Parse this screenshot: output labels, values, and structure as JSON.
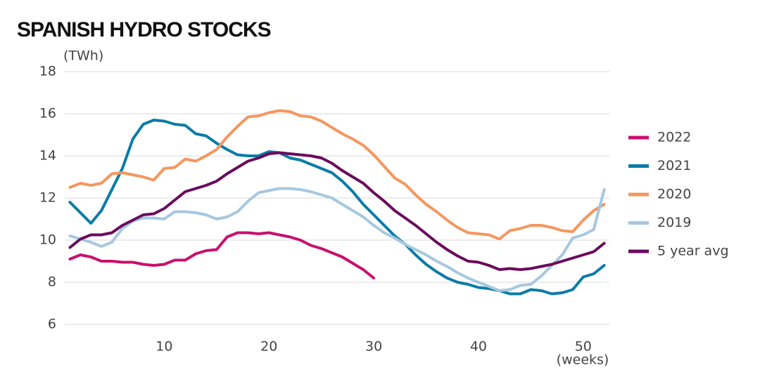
{
  "chart_data": {
    "type": "line",
    "title": "SPANISH HYDRO STOCKS",
    "y_label": "(TWh)",
    "x_label": "(weeks)",
    "x": [
      1,
      2,
      3,
      4,
      5,
      6,
      7,
      8,
      9,
      10,
      11,
      12,
      13,
      14,
      15,
      16,
      17,
      18,
      19,
      20,
      21,
      22,
      23,
      24,
      25,
      26,
      27,
      28,
      29,
      30,
      31,
      32,
      33,
      34,
      35,
      36,
      37,
      38,
      39,
      40,
      41,
      42,
      43,
      44,
      45,
      46,
      47,
      48,
      49,
      50,
      51,
      52
    ],
    "xlim": [
      0.5,
      52.5
    ],
    "xticks": [
      10,
      20,
      30,
      40,
      50
    ],
    "ylim": [
      6,
      18
    ],
    "yticks": [
      6,
      8,
      10,
      12,
      14,
      16,
      18
    ],
    "grid": true,
    "legend": "right",
    "series": [
      {
        "name": "2022",
        "color": "#c8106e",
        "values": [
          9.1,
          9.3,
          9.2,
          9.0,
          9.0,
          8.95,
          8.95,
          8.85,
          8.8,
          8.85,
          9.05,
          9.05,
          9.35,
          9.5,
          9.55,
          10.15,
          10.35,
          10.35,
          10.3,
          10.35,
          10.25,
          10.15,
          10.0,
          9.75,
          9.6,
          9.4,
          9.2,
          8.9,
          8.6,
          8.2,
          null,
          null,
          null,
          null,
          null,
          null,
          null,
          null,
          null,
          null,
          null,
          null,
          null,
          null,
          null,
          null,
          null,
          null,
          null,
          null,
          null,
          null
        ]
      },
      {
        "name": "2021",
        "color": "#0a7ca6",
        "values": [
          11.8,
          11.3,
          10.8,
          11.4,
          12.4,
          13.4,
          14.8,
          15.5,
          15.7,
          15.65,
          15.5,
          15.45,
          15.05,
          14.95,
          14.6,
          14.3,
          14.05,
          14.0,
          14.0,
          14.2,
          14.15,
          13.9,
          13.8,
          13.6,
          13.4,
          13.2,
          12.8,
          12.3,
          11.7,
          11.2,
          10.7,
          10.2,
          9.8,
          9.3,
          8.85,
          8.5,
          8.2,
          8.0,
          7.9,
          7.75,
          7.7,
          7.6,
          7.45,
          7.45,
          7.65,
          7.6,
          7.45,
          7.5,
          7.65,
          8.25,
          8.4,
          8.8
        ]
      },
      {
        "name": "2020",
        "color": "#f4975f",
        "values": [
          12.5,
          12.7,
          12.6,
          12.7,
          13.15,
          13.2,
          13.1,
          13.0,
          12.85,
          13.4,
          13.45,
          13.85,
          13.75,
          14.0,
          14.3,
          14.9,
          15.4,
          15.85,
          15.9,
          16.05,
          16.15,
          16.1,
          15.9,
          15.85,
          15.65,
          15.35,
          15.05,
          14.8,
          14.5,
          14.05,
          13.5,
          12.95,
          12.65,
          12.15,
          11.7,
          11.35,
          10.95,
          10.6,
          10.35,
          10.3,
          10.25,
          10.05,
          10.45,
          10.55,
          10.7,
          10.7,
          10.6,
          10.45,
          10.4,
          10.95,
          11.4,
          11.7
        ]
      },
      {
        "name": "2019",
        "color": "#a6c8e0",
        "values": [
          10.2,
          10.05,
          9.9,
          9.7,
          9.9,
          10.55,
          10.9,
          11.05,
          11.05,
          11.0,
          11.35,
          11.35,
          11.3,
          11.2,
          11.0,
          11.1,
          11.35,
          11.85,
          12.25,
          12.35,
          12.45,
          12.45,
          12.4,
          12.3,
          12.15,
          12.0,
          11.7,
          11.4,
          11.1,
          10.7,
          10.35,
          10.1,
          9.8,
          9.55,
          9.3,
          9.0,
          8.75,
          8.45,
          8.2,
          8.0,
          7.8,
          7.6,
          7.65,
          7.85,
          7.9,
          8.3,
          8.8,
          9.3,
          10.1,
          10.25,
          10.5,
          12.4
        ]
      },
      {
        "name": "5 year avg",
        "color": "#6a0b5c",
        "values": [
          9.65,
          10.05,
          10.25,
          10.25,
          10.35,
          10.7,
          10.95,
          11.2,
          11.25,
          11.5,
          11.9,
          12.3,
          12.45,
          12.6,
          12.8,
          13.15,
          13.45,
          13.75,
          13.9,
          14.1,
          14.15,
          14.1,
          14.05,
          14.0,
          13.9,
          13.65,
          13.3,
          13.0,
          12.7,
          12.25,
          11.85,
          11.4,
          11.05,
          10.7,
          10.3,
          9.9,
          9.55,
          9.25,
          9.0,
          8.95,
          8.8,
          8.6,
          8.65,
          8.6,
          8.65,
          8.75,
          8.85,
          9.0,
          9.15,
          9.3,
          9.45,
          9.85
        ]
      }
    ]
  }
}
